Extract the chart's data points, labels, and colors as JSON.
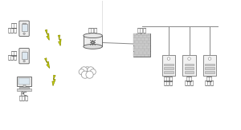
{
  "bg_color": "#ffffff",
  "line_color": "#888888",
  "lightning_color": "#ccdd00",
  "lightning_edge": "#888800",
  "labels": {
    "router": "路由器",
    "firewall": "防火墙",
    "mobile1_line1": "移动",
    "mobile1_line2": "客户端",
    "mobile2_line1": "移动",
    "mobile2_line2": "客户端",
    "pc_line1": "PC",
    "pc_line2": "客户端",
    "db_server_line1": "数据库",
    "db_server_line2": "服务器",
    "app_server_line1": "应用",
    "app_server_line2": "服务器",
    "file_server_line1": "文件",
    "file_server_line2": "服务器"
  },
  "font_size": 4.8
}
